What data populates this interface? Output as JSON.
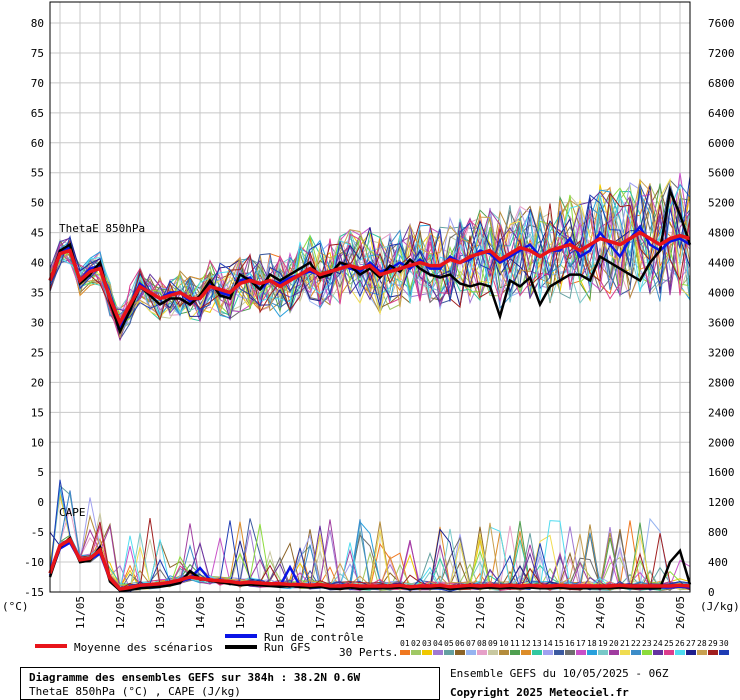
{
  "chart_data": {
    "type": "line",
    "left_axis": {
      "unit": "(°C)",
      "ylim": [
        -15,
        80
      ],
      "ticks": [
        -15,
        -10,
        -5,
        0,
        5,
        10,
        15,
        20,
        25,
        30,
        35,
        40,
        45,
        50,
        55,
        60,
        65,
        70,
        75,
        80
      ]
    },
    "right_axis": {
      "unit": "(J/kg)",
      "ylim": [
        0,
        7600
      ],
      "ticks": [
        0,
        400,
        800,
        1200,
        1600,
        2000,
        2400,
        2800,
        3200,
        3600,
        4000,
        4400,
        4800,
        5200,
        5600,
        6000,
        6400,
        6800,
        7200,
        7600
      ]
    },
    "x_ticks": [
      "11/05",
      "12/05",
      "13/05",
      "14/05",
      "15/05",
      "16/05",
      "17/05",
      "18/05",
      "19/05",
      "20/05",
      "21/05",
      "22/05",
      "23/05",
      "24/05",
      "25/05",
      "26/05"
    ],
    "panel_labels": {
      "thetae": "ThetaE 850hPa",
      "cape": "CAPE"
    },
    "x_hours": [
      0,
      6,
      12,
      18,
      24,
      30,
      36,
      42,
      48,
      54,
      60,
      66,
      72,
      78,
      84,
      90,
      96,
      102,
      108,
      114,
      120,
      126,
      132,
      138,
      144,
      150,
      156,
      162,
      168,
      174,
      180,
      186,
      192,
      198,
      204,
      210,
      216,
      222,
      228,
      234,
      240,
      246,
      252,
      258,
      264,
      270,
      276,
      282,
      288,
      294,
      300,
      306,
      312,
      318,
      324,
      330,
      336,
      342,
      348,
      354,
      360,
      366,
      372,
      378,
      384
    ],
    "series": [
      {
        "role": "mean",
        "values_thetae": [
          37,
          41.5,
          42,
          37,
          38.5,
          39,
          34,
          30,
          33,
          36,
          35,
          34,
          34.5,
          35,
          34,
          34,
          36,
          35.5,
          35,
          36.5,
          37,
          36.5,
          37,
          36,
          37,
          38,
          39,
          38,
          38.5,
          39,
          39.5,
          39,
          39.5,
          38,
          38.5,
          39,
          39.5,
          40,
          39.5,
          39.5,
          40.5,
          40,
          41,
          41.5,
          42,
          40.5,
          41.5,
          42.5,
          42,
          41,
          42,
          42.5,
          43,
          42,
          43,
          44,
          43.5,
          43,
          44,
          45,
          44,
          43,
          44,
          44.5,
          44
        ],
        "values_cape": [
          250,
          620,
          700,
          430,
          450,
          560,
          180,
          40,
          60,
          90,
          100,
          110,
          130,
          160,
          200,
          180,
          160,
          150,
          140,
          120,
          130,
          120,
          110,
          110,
          100,
          100,
          90,
          100,
          80,
          80,
          90,
          80,
          80,
          80,
          80,
          90,
          70,
          80,
          80,
          90,
          70,
          80,
          90,
          80,
          90,
          80,
          90,
          80,
          90,
          80,
          80,
          90,
          80,
          80,
          80,
          80,
          80,
          90,
          80,
          80,
          80,
          80,
          80,
          90,
          80
        ]
      },
      {
        "role": "control",
        "values_thetae": [
          37,
          42,
          42.5,
          37,
          39,
          39.5,
          34,
          29,
          33,
          36.5,
          35,
          34,
          35,
          35,
          33.5,
          34,
          36.5,
          35,
          34.5,
          37,
          37.5,
          35.5,
          37,
          36.5,
          37.5,
          38,
          38.5,
          38,
          38,
          40,
          39,
          38.5,
          40,
          38.5,
          39,
          40,
          39,
          40.5,
          39,
          39,
          41,
          40,
          40.5,
          42,
          41.5,
          40,
          41,
          42,
          43,
          41,
          42,
          42,
          44,
          41,
          42,
          45,
          43,
          41,
          44,
          46,
          43,
          42,
          43.5,
          44,
          43
        ],
        "values_cape": [
          220,
          580,
          660,
          420,
          430,
          520,
          160,
          30,
          40,
          60,
          80,
          90,
          100,
          140,
          180,
          320,
          160,
          140,
          120,
          100,
          110,
          100,
          90,
          80,
          330,
          80,
          70,
          90,
          60,
          50,
          70,
          50,
          60,
          60,
          60,
          70,
          50,
          60,
          60,
          70,
          50,
          60,
          70,
          60,
          70,
          60,
          70,
          60,
          70,
          60,
          60,
          70,
          60,
          60,
          60,
          60,
          60,
          70,
          60,
          60,
          60,
          60,
          60,
          70,
          60
        ]
      },
      {
        "role": "gfs",
        "values_thetae": [
          37,
          42,
          43,
          36.5,
          38,
          40,
          33.5,
          28.5,
          32,
          36,
          34.5,
          33,
          34,
          34,
          33,
          34.5,
          37,
          34.5,
          34,
          38,
          37,
          35.5,
          38,
          37,
          38,
          39,
          40,
          37.5,
          38,
          40,
          39.5,
          38,
          39,
          37.5,
          39.5,
          38.5,
          40.5,
          39,
          38,
          37.5,
          38,
          36.5,
          36,
          36.5,
          36,
          31,
          37,
          36,
          37.5,
          33,
          36,
          37,
          38,
          38,
          37,
          41,
          40,
          39,
          38,
          37,
          40,
          42,
          52,
          48,
          43
        ],
        "values_cape": [
          200,
          600,
          720,
          400,
          420,
          600,
          140,
          20,
          30,
          50,
          60,
          70,
          90,
          120,
          280,
          180,
          150,
          130,
          110,
          90,
          100,
          90,
          80,
          70,
          80,
          70,
          60,
          70,
          50,
          40,
          60,
          40,
          50,
          50,
          50,
          60,
          40,
          50,
          50,
          60,
          40,
          50,
          60,
          50,
          60,
          50,
          60,
          50,
          60,
          50,
          50,
          60,
          50,
          50,
          50,
          50,
          50,
          60,
          50,
          50,
          50,
          50,
          400,
          550,
          100
        ]
      }
    ],
    "perturbation_count": 30
  },
  "colors": {
    "mean": "#e8141a",
    "control": "#0a14e6",
    "gfs": "#000000",
    "perturbations": [
      "#f07820",
      "#a0c864",
      "#f0c800",
      "#a078d2",
      "#64a0a0",
      "#8c6428",
      "#96b4f0",
      "#e6a0c8",
      "#c8c8a0",
      "#b48c3c",
      "#50a050",
      "#dc8c28",
      "#32c8a0",
      "#a0a0f0",
      "#3c5aa0",
      "#6e6e6e",
      "#c850c8",
      "#28a0dc",
      "#78c8c8",
      "#a03ca0",
      "#f0dc50",
      "#3c8cc8",
      "#8cdc3c",
      "#6432a0",
      "#dc3c8c",
      "#50dcf0",
      "#1e1e8c",
      "#c8a050",
      "#a01e1e",
      "#1e3cb4"
    ]
  },
  "legend": {
    "mean": "Moyenne des scénarios",
    "control": "Run de contrôle",
    "gfs": "Run GFS",
    "perts": "30 Perts.",
    "pert_numbers": [
      "01",
      "02",
      "03",
      "04",
      "05",
      "06",
      "07",
      "08",
      "09",
      "10",
      "11",
      "12",
      "13",
      "14",
      "15",
      "16",
      "17",
      "18",
      "19",
      "20",
      "21",
      "22",
      "23",
      "24",
      "25",
      "26",
      "27",
      "28",
      "29",
      "30"
    ]
  },
  "footer": {
    "title": "Diagramme des ensembles GEFS sur 384h : 38.2N 0.6W",
    "subtitle": "ThetaE 850hPa (°C) , CAPE (J/kg)",
    "ensemble": "Ensemble GEFS du 10/05/2025 - 06Z",
    "copyright": "Copyright 2025 Meteociel.fr"
  }
}
